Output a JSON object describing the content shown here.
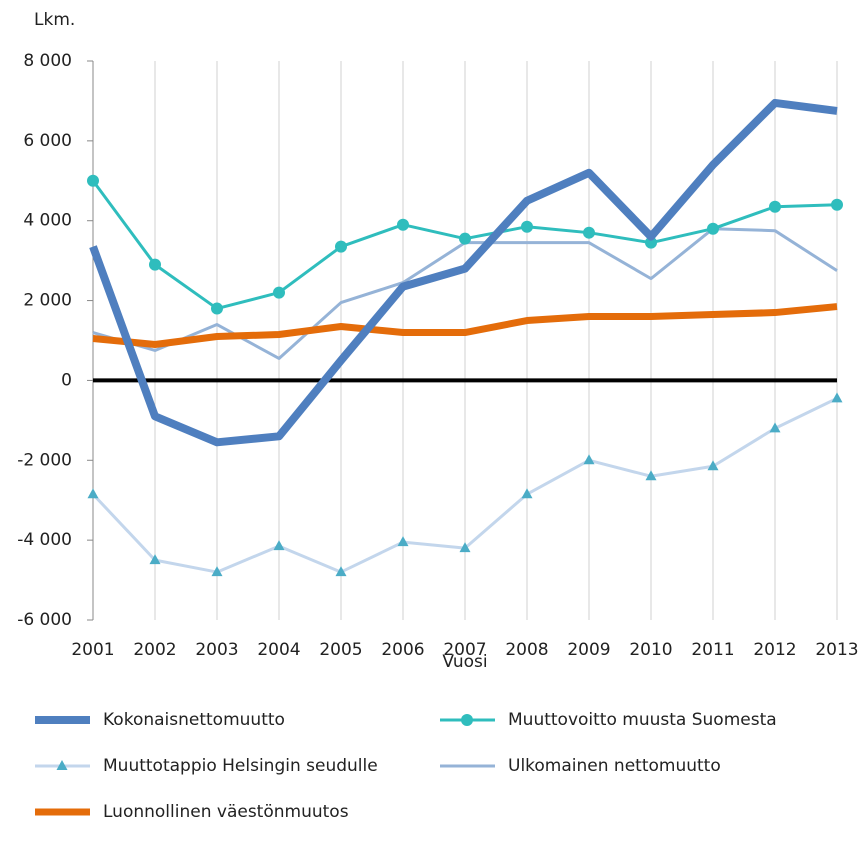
{
  "chart_data": {
    "type": "line",
    "y_label": "Lkm.",
    "x_label": "Vuosi",
    "categories": [
      "2001",
      "2002",
      "2003",
      "2004",
      "2005",
      "2006",
      "2007",
      "2008",
      "2009",
      "2010",
      "2011",
      "2012",
      "2013"
    ],
    "series": [
      {
        "name": "Kokonaisnettomuutto",
        "color": "#4f7fbf",
        "values": [
          3350,
          -900,
          -1550,
          -1400,
          500,
          2350,
          2800,
          4500,
          5200,
          3600,
          5400,
          6950,
          6750
        ]
      },
      {
        "name": "Muuttovoitto muusta Suomesta",
        "color": "#2fbdbd",
        "marker": "circle",
        "values": [
          5000,
          2900,
          1800,
          2200,
          3350,
          3900,
          3550,
          3850,
          3700,
          3450,
          3800,
          4350,
          4400
        ]
      },
      {
        "name": "Muuttotappio Helsingin seudulle",
        "color": "#c3d6ec",
        "marker": "triangle",
        "values": [
          -2850,
          -4500,
          -4800,
          -4150,
          -4800,
          -4050,
          -4200,
          -2850,
          -2000,
          -2400,
          -2150,
          -1200,
          -450
        ]
      },
      {
        "name": "Ulkomainen nettomuutto",
        "color": "#95b3d7",
        "values": [
          1200,
          750,
          1400,
          550,
          1950,
          2450,
          3450,
          3450,
          3450,
          2550,
          3800,
          3750,
          2750
        ]
      },
      {
        "name": "Luonnollinen väestönmuutos",
        "color": "#e46c0a",
        "values": [
          1050,
          900,
          1100,
          1150,
          1350,
          1200,
          1200,
          1500,
          1600,
          1600,
          1650,
          1700,
          1850
        ]
      }
    ],
    "ylim": [
      -6000,
      8000
    ],
    "yticks": [
      {
        "value": -6000,
        "label": "-6 000"
      },
      {
        "value": -4000,
        "label": "-4 000"
      },
      {
        "value": -2000,
        "label": "-2 000"
      },
      0,
      {
        "value": 2000,
        "label": "2 000"
      },
      {
        "value": 4000,
        "label": "4 000"
      },
      {
        "value": 6000,
        "label": "6 000"
      },
      {
        "value": 8000,
        "label": "8 000"
      }
    ],
    "grid": "x"
  }
}
